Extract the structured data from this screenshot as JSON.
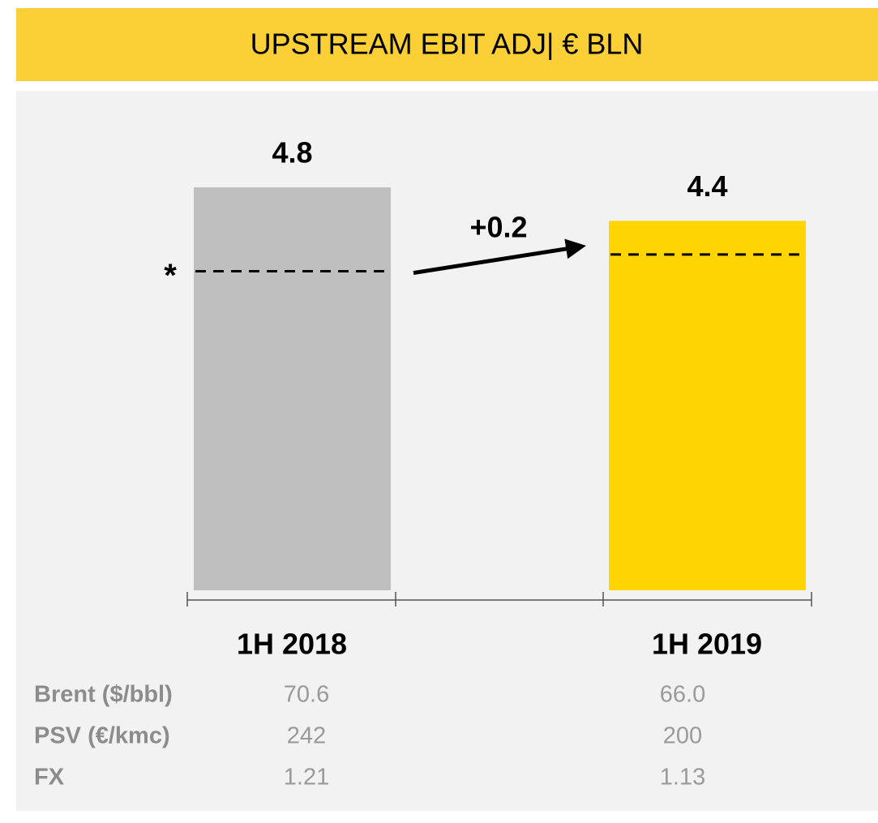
{
  "chart_data": {
    "type": "bar",
    "title": "UPSTREAM EBIT ADJ| € BLN",
    "categories": [
      "1H 2018",
      "1H 2019"
    ],
    "values": [
      4.8,
      4.4
    ],
    "colors": [
      "#bfbfbf",
      "#ffd500"
    ],
    "adjusted_values": [
      3.8,
      4.0
    ],
    "adjusted_marker": "*",
    "annotation": "+0.2",
    "ylim": [
      0,
      4.8
    ],
    "table": {
      "rows": [
        {
          "label": "Brent ($/bbl)",
          "values": [
            "70.6",
            "66.0"
          ]
        },
        {
          "label": "PSV (€/kmc)",
          "values": [
            "242",
            "200"
          ]
        },
        {
          "label": "FX",
          "values": [
            "1.21",
            "1.13"
          ]
        }
      ]
    }
  }
}
